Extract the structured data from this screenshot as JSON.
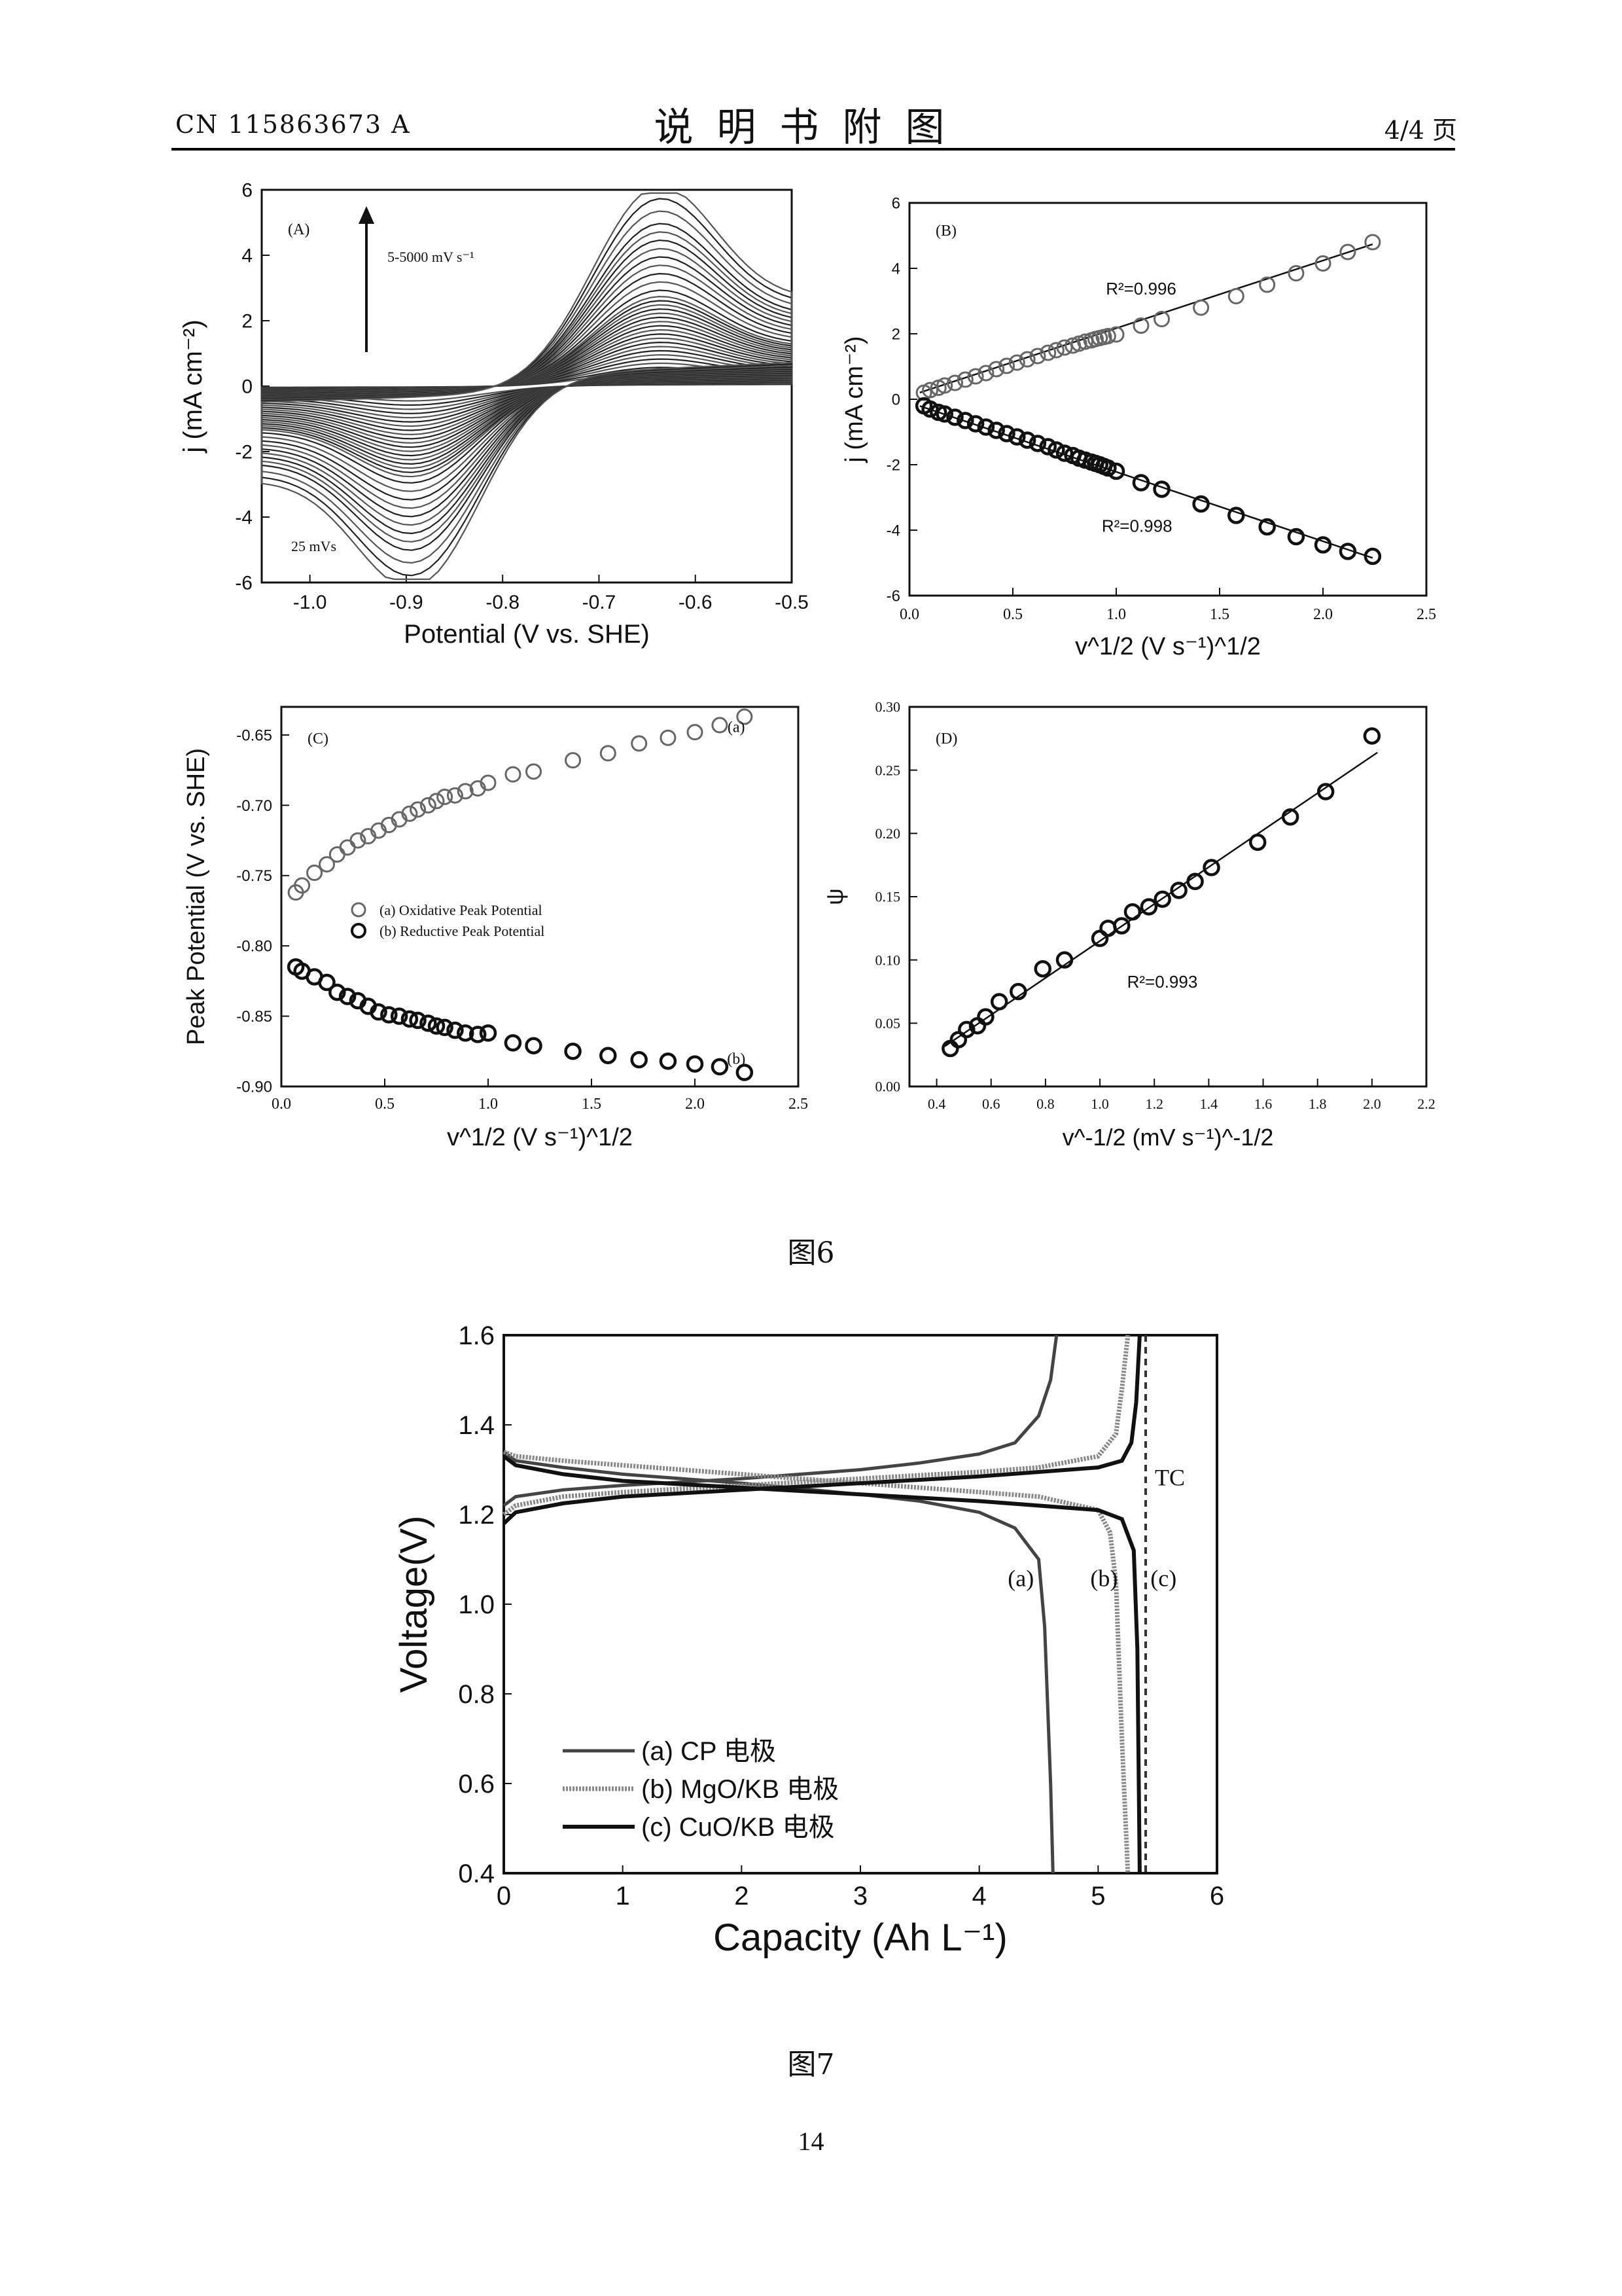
{
  "header": {
    "left": "CN 115863673 A",
    "title": "说明书附图",
    "right": "4/4 页"
  },
  "figure6": {
    "caption": "图6",
    "panels": [
      {
        "key": "A",
        "label": "(A)",
        "annotation_top": "5-5000 mV s⁻¹",
        "annotation_bottom": "25 mVs",
        "chart_data": {
          "type": "line",
          "title": "",
          "xlabel": "Potential (V vs. SHE)",
          "ylabel": "j (mA cm⁻²)",
          "xlim": [
            -1.05,
            -0.5
          ],
          "ylim": [
            -6,
            6
          ],
          "xticks": [
            -1.0,
            -0.9,
            -0.8,
            -0.7,
            -0.6,
            -0.5
          ],
          "yticks": [
            -6,
            -4,
            -2,
            0,
            2,
            4,
            6
          ],
          "xtick_labels": [
            "-1.0",
            "-0.9",
            "-0.8",
            "-0.7",
            "-0.6",
            "-0.5"
          ],
          "ytick_labels": [
            "-6",
            "-4",
            "-2",
            "0",
            "2",
            "4",
            "6"
          ],
          "series_note": "family of cyclic voltammograms, scan rate increasing upward",
          "peak_current_scale": [
            0.35,
            0.45,
            0.55,
            0.65,
            0.75,
            0.85,
            0.95,
            1.05,
            1.15,
            1.25,
            1.35,
            1.45,
            1.55,
            1.65,
            1.75,
            1.85,
            1.95,
            2.05,
            2.15,
            2.3,
            2.5,
            2.7,
            2.9,
            3.1,
            3.3,
            3.5,
            3.7,
            3.9,
            4.2,
            4.5,
            4.8
          ],
          "anodic_peak_potential": -0.65,
          "cathodic_peak_potential": -0.88
        }
      },
      {
        "key": "B",
        "label": "(B)",
        "chart_data": {
          "type": "scatter",
          "title": "",
          "xlabel": "v^1/2 (V s⁻¹)^1/2",
          "ylabel": "j (mA cm⁻²)",
          "xlim": [
            0,
            2.5
          ],
          "ylim": [
            -6,
            6
          ],
          "xticks": [
            0.0,
            0.5,
            1.0,
            1.5,
            2.0,
            2.5
          ],
          "yticks": [
            -6,
            -4,
            -2,
            0,
            2,
            4,
            6
          ],
          "xtick_labels": [
            "0.0",
            "0.5",
            "1.0",
            "1.5",
            "2.0",
            "2.5"
          ],
          "ytick_labels": [
            "-6",
            "-4",
            "-2",
            "0",
            "2",
            "4",
            "6"
          ],
          "x": [
            0.07,
            0.1,
            0.14,
            0.17,
            0.22,
            0.27,
            0.32,
            0.37,
            0.42,
            0.47,
            0.52,
            0.57,
            0.62,
            0.67,
            0.71,
            0.75,
            0.79,
            0.82,
            0.85,
            0.88,
            0.9,
            0.92,
            0.94,
            0.96,
            1.0,
            1.12,
            1.22,
            1.41,
            1.58,
            1.73,
            1.87,
            2.0,
            2.12,
            2.24
          ],
          "series": [
            {
              "name": "R²=0.996",
              "values": [
                0.2,
                0.28,
                0.35,
                0.42,
                0.5,
                0.6,
                0.7,
                0.8,
                0.92,
                1.02,
                1.12,
                1.22,
                1.32,
                1.42,
                1.5,
                1.58,
                1.64,
                1.7,
                1.76,
                1.8,
                1.84,
                1.87,
                1.9,
                1.93,
                1.98,
                2.25,
                2.45,
                2.8,
                3.15,
                3.5,
                3.85,
                4.15,
                4.5,
                4.8
              ]
            },
            {
              "name": "R²=0.998",
              "values": [
                -0.2,
                -0.3,
                -0.4,
                -0.45,
                -0.55,
                -0.65,
                -0.75,
                -0.85,
                -0.95,
                -1.05,
                -1.15,
                -1.25,
                -1.35,
                -1.45,
                -1.55,
                -1.65,
                -1.72,
                -1.8,
                -1.86,
                -1.92,
                -1.96,
                -2.0,
                -2.05,
                -2.1,
                -2.2,
                -2.55,
                -2.75,
                -3.2,
                -3.55,
                -3.9,
                -4.2,
                -4.45,
                -4.65,
                -4.8
              ]
            }
          ],
          "fits": [
            {
              "slope": 2.07,
              "intercept": 0.1
            },
            {
              "slope": -2.12,
              "intercept": -0.1
            }
          ],
          "annotations": [
            "R²=0.996",
            "R²=0.998"
          ]
        }
      },
      {
        "key": "C",
        "label": "(C)",
        "chart_data": {
          "type": "scatter",
          "title": "",
          "xlabel": "v^1/2 (V s⁻¹)^1/2",
          "ylabel": "Peak Potential (V vs. SHE)",
          "xlim": [
            0,
            2.5
          ],
          "ylim": [
            -0.9,
            -0.63
          ],
          "xticks": [
            0.0,
            0.5,
            1.0,
            1.5,
            2.0,
            2.5
          ],
          "yticks": [
            -0.9,
            -0.85,
            -0.8,
            -0.75,
            -0.7,
            -0.65
          ],
          "xtick_labels": [
            "0.0",
            "0.5",
            "1.0",
            "1.5",
            "2.0",
            "2.5"
          ],
          "ytick_labels": [
            "-0.90",
            "-0.85",
            "-0.80",
            "-0.75",
            "-0.70",
            "-0.65"
          ],
          "x": [
            0.07,
            0.1,
            0.16,
            0.22,
            0.27,
            0.32,
            0.37,
            0.42,
            0.47,
            0.52,
            0.57,
            0.62,
            0.66,
            0.71,
            0.75,
            0.79,
            0.84,
            0.89,
            0.95,
            1.0,
            1.12,
            1.22,
            1.41,
            1.58,
            1.73,
            1.87,
            2.0,
            2.12,
            2.24
          ],
          "series": [
            {
              "name": "(a) Oxidative Peak Potential",
              "tag": "(a)",
              "values": [
                -0.762,
                -0.757,
                -0.748,
                -0.742,
                -0.735,
                -0.73,
                -0.725,
                -0.722,
                -0.718,
                -0.714,
                -0.71,
                -0.706,
                -0.703,
                -0.7,
                -0.697,
                -0.694,
                -0.693,
                -0.69,
                -0.688,
                -0.684,
                -0.678,
                -0.676,
                -0.668,
                -0.663,
                -0.656,
                -0.652,
                -0.648,
                -0.643,
                -0.637
              ]
            },
            {
              "name": "(b) Reductive Peak Potential",
              "tag": "(b)",
              "values": [
                -0.815,
                -0.818,
                -0.822,
                -0.826,
                -0.833,
                -0.836,
                -0.839,
                -0.843,
                -0.847,
                -0.849,
                -0.85,
                -0.852,
                -0.853,
                -0.855,
                -0.857,
                -0.858,
                -0.86,
                -0.862,
                -0.863,
                -0.862,
                -0.869,
                -0.871,
                -0.875,
                -0.878,
                -0.881,
                -0.882,
                -0.884,
                -0.886,
                -0.89
              ]
            }
          ]
        }
      },
      {
        "key": "D",
        "label": "(D)",
        "chart_data": {
          "type": "scatter",
          "title": "",
          "xlabel": "v^-1/2 (mV s⁻¹)^-1/2",
          "ylabel": "ψ",
          "xlim": [
            0.3,
            2.2
          ],
          "ylim": [
            0.0,
            0.3
          ],
          "xticks": [
            0.4,
            0.6,
            0.8,
            1.0,
            1.2,
            1.4,
            1.6,
            1.8,
            2.0,
            2.2
          ],
          "yticks": [
            0.0,
            0.05,
            0.1,
            0.15,
            0.2,
            0.25,
            0.3
          ],
          "xtick_labels": [
            "0.4",
            "0.6",
            "0.8",
            "1.0",
            "1.2",
            "1.4",
            "1.6",
            "1.8",
            "2.0",
            "2.2"
          ],
          "ytick_labels": [
            "0.00",
            "0.05",
            "0.10",
            "0.15",
            "0.20",
            "0.25",
            "0.30"
          ],
          "x": [
            0.45,
            0.48,
            0.51,
            0.55,
            0.58,
            0.63,
            0.7,
            0.79,
            0.87,
            1.0,
            1.03,
            1.08,
            1.12,
            1.18,
            1.23,
            1.29,
            1.35,
            1.41,
            1.58,
            1.7,
            1.83,
            2.0
          ],
          "series": [
            {
              "name": "ψ",
              "values": [
                0.03,
                0.037,
                0.045,
                0.048,
                0.055,
                0.067,
                0.075,
                0.093,
                0.1,
                0.117,
                0.125,
                0.127,
                0.138,
                0.142,
                0.148,
                0.155,
                0.162,
                0.173,
                0.193,
                0.213,
                0.233,
                0.277
              ]
            }
          ],
          "fit": {
            "slope": 0.146,
            "intercept": -0.031
          },
          "annotations": [
            "R²=0.993"
          ]
        }
      }
    ]
  },
  "figure7": {
    "caption": "图7",
    "chart_data": {
      "type": "line",
      "title": "",
      "xlabel": "Capacity (Ah L⁻¹)",
      "ylabel": "Voltage(V)",
      "xlim": [
        0,
        6
      ],
      "ylim": [
        0.4,
        1.6
      ],
      "xticks": [
        0,
        1,
        2,
        3,
        4,
        5,
        6
      ],
      "yticks": [
        0.4,
        0.6,
        0.8,
        1.0,
        1.2,
        1.4,
        1.6
      ],
      "xtick_labels": [
        "0",
        "1",
        "2",
        "3",
        "4",
        "5",
        "6"
      ],
      "ytick_labels": [
        "0.4",
        "0.6",
        "0.8",
        "1.0",
        "1.2",
        "1.4",
        "1.6"
      ],
      "legend_position": "lower-left",
      "series": [
        {
          "name": "(a) CP 电极",
          "tag": "(a)",
          "color": "#444444",
          "style": "solid",
          "charge": {
            "x": [
              0,
              0.1,
              0.5,
              1,
              2,
              3,
              3.5,
              4,
              4.3,
              4.5,
              4.6,
              4.65
            ],
            "y": [
              1.22,
              1.24,
              1.255,
              1.265,
              1.28,
              1.3,
              1.315,
              1.335,
              1.36,
              1.42,
              1.5,
              1.6
            ]
          },
          "discharge": {
            "x": [
              0,
              0.1,
              0.5,
              1,
              2,
              3,
              3.5,
              4,
              4.3,
              4.5,
              4.55,
              4.6,
              4.62
            ],
            "y": [
              1.34,
              1.32,
              1.305,
              1.29,
              1.27,
              1.245,
              1.23,
              1.205,
              1.17,
              1.1,
              0.95,
              0.6,
              0.4
            ]
          }
        },
        {
          "name": "(b) MgO/KB 电极",
          "tag": "(b)",
          "color": "#888888",
          "style": "hatched",
          "charge": {
            "x": [
              0,
              0.1,
              0.5,
              1,
              2,
              3,
              4,
              4.5,
              5,
              5.15,
              5.2,
              5.25
            ],
            "y": [
              1.2,
              1.22,
              1.24,
              1.25,
              1.265,
              1.28,
              1.295,
              1.305,
              1.33,
              1.38,
              1.48,
              1.6
            ]
          },
          "discharge": {
            "x": [
              0,
              0.1,
              0.5,
              1,
              2,
              3,
              4,
              4.5,
              5,
              5.1,
              5.15,
              5.2,
              5.25
            ],
            "y": [
              1.34,
              1.33,
              1.32,
              1.31,
              1.29,
              1.27,
              1.25,
              1.24,
              1.21,
              1.16,
              1.05,
              0.7,
              0.4
            ]
          }
        },
        {
          "name": "(c) CuO/KB 电极",
          "tag": "(c)",
          "color": "#111111",
          "style": "bold",
          "charge": {
            "x": [
              0,
              0.1,
              0.5,
              1,
              2,
              3,
              4,
              5,
              5.2,
              5.28,
              5.32,
              5.35
            ],
            "y": [
              1.18,
              1.205,
              1.225,
              1.24,
              1.255,
              1.27,
              1.285,
              1.305,
              1.32,
              1.36,
              1.45,
              1.6
            ]
          },
          "discharge": {
            "x": [
              0,
              0.1,
              0.5,
              1,
              2,
              3,
              4,
              5,
              5.2,
              5.3,
              5.33,
              5.35
            ],
            "y": [
              1.33,
              1.31,
              1.29,
              1.275,
              1.26,
              1.245,
              1.23,
              1.21,
              1.19,
              1.12,
              0.9,
              0.4
            ]
          }
        }
      ],
      "reference_line": {
        "label": "TC",
        "x": 5.4
      }
    }
  },
  "page_number": "14"
}
